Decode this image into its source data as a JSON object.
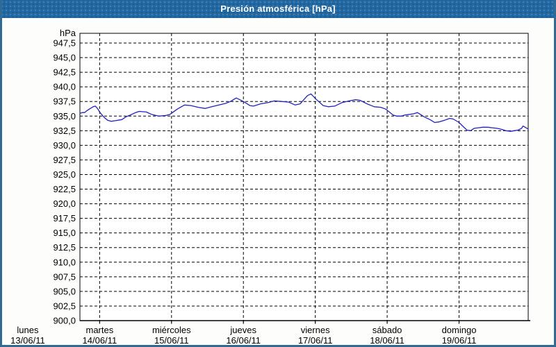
{
  "window": {
    "title": "Presión atmosférica [hPa]"
  },
  "colors": {
    "titlebar_bg": "#2268a2",
    "frame_border": "#2f6b94",
    "background": "#fdfdfc",
    "grid": "#000000",
    "axis": "#000000",
    "line": "#2121bd",
    "title_text": "#ffffff",
    "label_text": "#000000"
  },
  "chart_data": {
    "type": "line",
    "title": "Presión atmosférica [hPa]",
    "y_unit_label": "hPa",
    "ylabel": "",
    "xlabel": "",
    "grid": "dashed",
    "legend": "none",
    "ylim": [
      900.0,
      949.2
    ],
    "y_tick_step": 2.5,
    "y_ticks": [
      {
        "label": "947,5",
        "value": 947.5
      },
      {
        "label": "945,0",
        "value": 945.0
      },
      {
        "label": "942,5",
        "value": 942.5
      },
      {
        "label": "940,0",
        "value": 940.0
      },
      {
        "label": "937,5",
        "value": 937.5
      },
      {
        "label": "935,0",
        "value": 935.0
      },
      {
        "label": "932,5",
        "value": 932.5
      },
      {
        "label": "930,0",
        "value": 930.0
      },
      {
        "label": "927,5",
        "value": 927.5
      },
      {
        "label": "925,0",
        "value": 925.0
      },
      {
        "label": "922,5",
        "value": 922.5
      },
      {
        "label": "920,0",
        "value": 920.0
      },
      {
        "label": "917,5",
        "value": 917.5
      },
      {
        "label": "915,0",
        "value": 915.0
      },
      {
        "label": "912,5",
        "value": 912.5
      },
      {
        "label": "910,0",
        "value": 910.0
      },
      {
        "label": "907,5",
        "value": 907.5
      },
      {
        "label": "905,0",
        "value": 905.0
      },
      {
        "label": "902,5",
        "value": 902.5
      },
      {
        "label": "900,0",
        "value": 900.0
      }
    ],
    "x_axis": {
      "unit": "days",
      "range_days": [
        0.73,
        6.96
      ],
      "gridline_days": [
        1,
        2,
        3,
        4,
        5,
        6
      ],
      "labels": [
        {
          "name": "lunes",
          "date": "13/06/11",
          "day": 0
        },
        {
          "name": "martes",
          "date": "14/06/11",
          "day": 1
        },
        {
          "name": "miércoles",
          "date": "15/06/11",
          "day": 2
        },
        {
          "name": "jueves",
          "date": "16/06/11",
          "day": 3
        },
        {
          "name": "viernes",
          "date": "17/06/11",
          "day": 4
        },
        {
          "name": "sábado",
          "date": "18/06/11",
          "day": 5
        },
        {
          "name": "domingo",
          "date": "19/06/11",
          "day": 6
        }
      ]
    },
    "series": [
      {
        "name": "Presión atmosférica",
        "color": "#2121bd",
        "points": [
          [
            0.73,
            935.5
          ],
          [
            0.76,
            935.6
          ],
          [
            0.79,
            935.6
          ],
          [
            0.82,
            935.9
          ],
          [
            0.87,
            936.3
          ],
          [
            0.91,
            936.6
          ],
          [
            0.94,
            936.7
          ],
          [
            0.97,
            936.3
          ],
          [
            1.0,
            935.7
          ],
          [
            1.04,
            935.1
          ],
          [
            1.07,
            934.7
          ],
          [
            1.11,
            934.3
          ],
          [
            1.16,
            934.1
          ],
          [
            1.21,
            934.2
          ],
          [
            1.26,
            934.3
          ],
          [
            1.31,
            934.4
          ],
          [
            1.37,
            934.9
          ],
          [
            1.43,
            935.2
          ],
          [
            1.5,
            935.6
          ],
          [
            1.55,
            935.8
          ],
          [
            1.65,
            935.7
          ],
          [
            1.72,
            935.3
          ],
          [
            1.82,
            935.0
          ],
          [
            1.92,
            935.1
          ],
          [
            1.98,
            935.3
          ],
          [
            2.08,
            936.2
          ],
          [
            2.18,
            936.9
          ],
          [
            2.27,
            936.8
          ],
          [
            2.37,
            936.5
          ],
          [
            2.47,
            936.3
          ],
          [
            2.56,
            936.6
          ],
          [
            2.66,
            936.9
          ],
          [
            2.76,
            937.2
          ],
          [
            2.82,
            937.5
          ],
          [
            2.9,
            938.1
          ],
          [
            3.0,
            937.5
          ],
          [
            3.09,
            936.8
          ],
          [
            3.14,
            936.7
          ],
          [
            3.24,
            937.1
          ],
          [
            3.34,
            937.3
          ],
          [
            3.43,
            937.6
          ],
          [
            3.53,
            937.5
          ],
          [
            3.63,
            937.4
          ],
          [
            3.72,
            936.9
          ],
          [
            3.79,
            937.1
          ],
          [
            3.89,
            938.5
          ],
          [
            3.94,
            938.8
          ],
          [
            4.01,
            937.9
          ],
          [
            4.11,
            936.8
          ],
          [
            4.18,
            936.6
          ],
          [
            4.27,
            936.7
          ],
          [
            4.37,
            937.3
          ],
          [
            4.47,
            937.6
          ],
          [
            4.56,
            937.8
          ],
          [
            4.62,
            937.7
          ],
          [
            4.72,
            937.1
          ],
          [
            4.82,
            936.6
          ],
          [
            4.91,
            936.5
          ],
          [
            4.98,
            936.2
          ],
          [
            5.03,
            935.7
          ],
          [
            5.08,
            935.2
          ],
          [
            5.13,
            935.0
          ],
          [
            5.2,
            935.0
          ],
          [
            5.25,
            935.2
          ],
          [
            5.32,
            935.3
          ],
          [
            5.37,
            935.4
          ],
          [
            5.42,
            935.6
          ],
          [
            5.46,
            935.3
          ],
          [
            5.51,
            934.9
          ],
          [
            5.56,
            934.6
          ],
          [
            5.61,
            934.3
          ],
          [
            5.66,
            933.9
          ],
          [
            5.72,
            934.0
          ],
          [
            5.8,
            934.3
          ],
          [
            5.87,
            934.6
          ],
          [
            5.92,
            934.5
          ],
          [
            6.0,
            933.9
          ],
          [
            6.05,
            933.3
          ],
          [
            6.11,
            932.6
          ],
          [
            6.16,
            932.5
          ],
          [
            6.21,
            932.9
          ],
          [
            6.27,
            933.0
          ],
          [
            6.33,
            933.1
          ],
          [
            6.4,
            933.1
          ],
          [
            6.46,
            933.0
          ],
          [
            6.53,
            932.9
          ],
          [
            6.6,
            932.7
          ],
          [
            6.65,
            932.5
          ],
          [
            6.72,
            932.4
          ],
          [
            6.77,
            932.5
          ],
          [
            6.82,
            932.6
          ],
          [
            6.87,
            932.9
          ],
          [
            6.89,
            933.3
          ],
          [
            6.93,
            933.0
          ],
          [
            6.96,
            932.8
          ]
        ]
      }
    ]
  }
}
